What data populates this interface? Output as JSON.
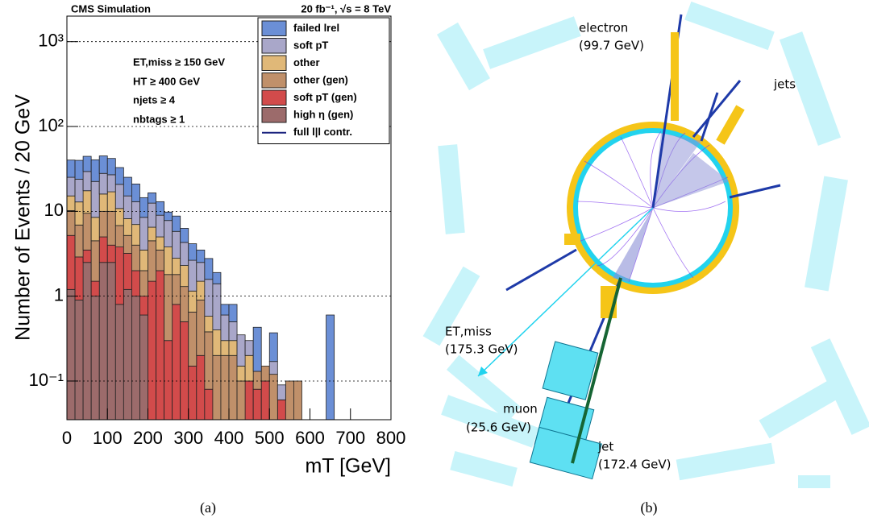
{
  "chart_data": {
    "type": "stacked_histogram",
    "title": "CMS Simulation",
    "subtitle": "20 fb⁻¹, √s = 8 TeV",
    "annotations": [
      "ET,miss ≥ 150 GeV",
      "HT ≥ 400 GeV",
      "njets ≥ 4",
      "nbtags ≥ 1"
    ],
    "x_label": "mT [GeV]",
    "y_label": "Number of Events / 20 GeV",
    "bins": [
      0,
      20,
      40,
      60,
      80,
      100,
      120,
      140,
      160,
      180,
      200,
      220,
      240,
      260,
      280,
      300,
      320,
      340,
      360,
      380,
      400,
      420,
      440,
      460,
      480,
      500,
      520,
      540,
      560,
      580,
      600,
      620,
      640,
      660,
      680,
      700,
      720,
      740,
      760,
      780,
      800
    ],
    "series": [
      {
        "name": "high η (gen)",
        "color": "#9c6b6b",
        "values": [
          1.2,
          0.9,
          2.5,
          1.0,
          2.5,
          2.5,
          0.8,
          1.2,
          1.0,
          0.6,
          0,
          0,
          0,
          0,
          0,
          0,
          0,
          0,
          0,
          0,
          0,
          0,
          0,
          0,
          0,
          0,
          0,
          0,
          0,
          0,
          0,
          0,
          0,
          0,
          0,
          0,
          0,
          0,
          0,
          0
        ]
      },
      {
        "name": "soft pT (gen)",
        "color": "#d24b4b",
        "values": [
          4,
          2,
          1,
          0.5,
          2.5,
          1.5,
          3,
          2,
          1,
          0.4,
          1.5,
          2,
          0.3,
          0.8,
          0.5,
          0.15,
          0.2,
          0.08,
          0,
          0,
          0,
          0,
          0.1,
          0.08,
          0.1,
          0,
          0.06,
          0,
          0,
          0,
          0,
          0,
          0,
          0,
          0,
          0,
          0,
          0,
          0,
          0
        ]
      },
      {
        "name": "other (gen)",
        "color": "#c0906a",
        "values": [
          5,
          4,
          6,
          3,
          5,
          6,
          3,
          2,
          2,
          1,
          3,
          1.5,
          1.5,
          1,
          0.8,
          0.5,
          0.7,
          0.3,
          0.2,
          0.2,
          0.2,
          0.1,
          0,
          0.05,
          0.05,
          0.12,
          0,
          0.1,
          0.1,
          0,
          0,
          0,
          0,
          0,
          0,
          0,
          0,
          0,
          0,
          0
        ]
      },
      {
        "name": "other",
        "color": "#e0b878",
        "values": [
          5,
          6,
          8,
          4,
          6,
          7,
          4,
          3,
          3,
          1.5,
          2,
          1.5,
          2,
          1,
          1,
          0.5,
          0.6,
          0.2,
          0.2,
          0.1,
          0.1,
          0.05,
          0.1,
          0,
          0,
          0,
          0,
          0,
          0,
          0,
          0,
          0,
          0,
          0,
          0,
          0,
          0,
          0,
          0,
          0
        ]
      },
      {
        "name": "soft pT",
        "color": "#a9a7c9",
        "values": [
          10,
          11,
          12,
          14,
          12,
          10,
          10,
          7,
          6,
          5,
          6,
          4,
          4,
          3,
          2,
          1.5,
          1,
          1,
          1,
          0.3,
          0.2,
          0.2,
          0.1,
          0,
          0,
          0.05,
          0.03,
          0,
          0,
          0,
          0,
          0,
          0,
          0,
          0,
          0,
          0,
          0,
          0,
          0
        ]
      },
      {
        "name": "failed lrel",
        "color": "#6b8fd6",
        "values": [
          15,
          16,
          15,
          18,
          17,
          15,
          12,
          10,
          8,
          6,
          4,
          4,
          2,
          3,
          2,
          1.5,
          1,
          1.2,
          0.5,
          0.2,
          0.3,
          0,
          0,
          0.3,
          0,
          0.2,
          0,
          0,
          0,
          0,
          0,
          0,
          0.6,
          0,
          0,
          0,
          0,
          0,
          0,
          0
        ]
      }
    ],
    "line_legend": {
      "name": "full l|l contr.",
      "color": "#1a237e"
    },
    "xlim": [
      0,
      800
    ],
    "xticks": [
      0,
      100,
      200,
      300,
      400,
      500,
      600,
      700,
      800
    ],
    "ylim": [
      0.035,
      2000
    ],
    "log_y": true,
    "yticks": [
      {
        "value": 0.1,
        "label": "10⁻¹"
      },
      1,
      10,
      {
        "value": 100,
        "label": "10²"
      },
      {
        "value": 1000,
        "label": "10³"
      }
    ],
    "grid": true,
    "legend": "upper right"
  },
  "panel_b": {
    "labels": [
      "electron",
      "(99.7 GeV)",
      "jets",
      "ET,miss",
      "(175.3 GeV)",
      "muon",
      "(25.6 GeV)",
      "jet",
      "(172.4 GeV)"
    ]
  },
  "captions": [
    "(a)",
    "(b)"
  ]
}
